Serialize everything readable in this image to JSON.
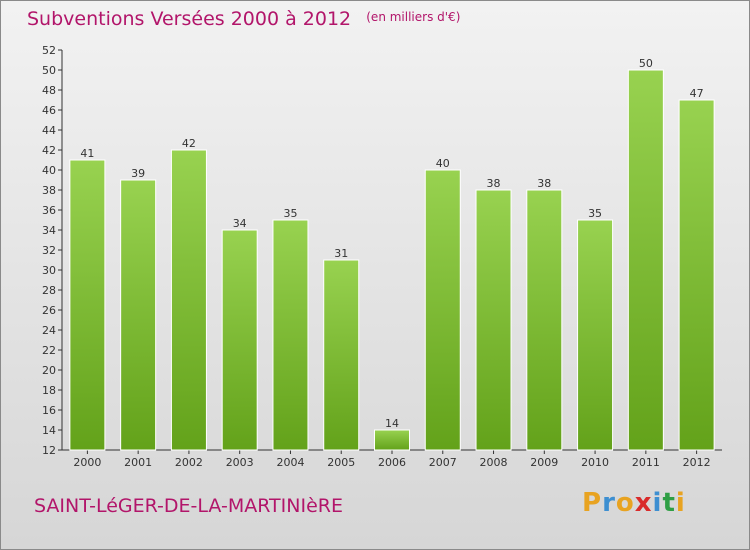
{
  "header": {
    "title": "Subventions Versées 2000 à 2012",
    "subtitle": "(en milliers d'€)"
  },
  "footer": {
    "commune": "SAINT-LéGER-DE-LA-MARTINIèRE",
    "logo_letters": [
      "P",
      "r",
      "o",
      "x",
      "i",
      "t",
      "i"
    ],
    "logo_colors": [
      "#e8a321",
      "#3d8fd1",
      "#e8a321",
      "#d92b2b",
      "#3d8fd1",
      "#2f9e44",
      "#e8a321"
    ]
  },
  "colors": {
    "title": "#b2156a",
    "bar_light": "#98d250",
    "bar_dark": "#63a21a",
    "axis": "#333333"
  },
  "chart_data": {
    "type": "bar",
    "title": "Subventions Versées 2000 à 2012",
    "subtitle": "(en milliers d'€)",
    "categories": [
      "2000",
      "2001",
      "2002",
      "2003",
      "2004",
      "2005",
      "2006",
      "2007",
      "2008",
      "2009",
      "2010",
      "2011",
      "2012"
    ],
    "values": [
      41,
      39,
      42,
      34,
      35,
      31,
      14,
      40,
      38,
      38,
      35,
      50,
      47
    ],
    "ylim": [
      12,
      52
    ],
    "yticks": [
      12,
      14,
      16,
      18,
      20,
      22,
      24,
      26,
      28,
      30,
      32,
      34,
      36,
      38,
      40,
      42,
      44,
      46,
      48,
      50,
      52
    ],
    "grid": false,
    "data_labels": true
  }
}
